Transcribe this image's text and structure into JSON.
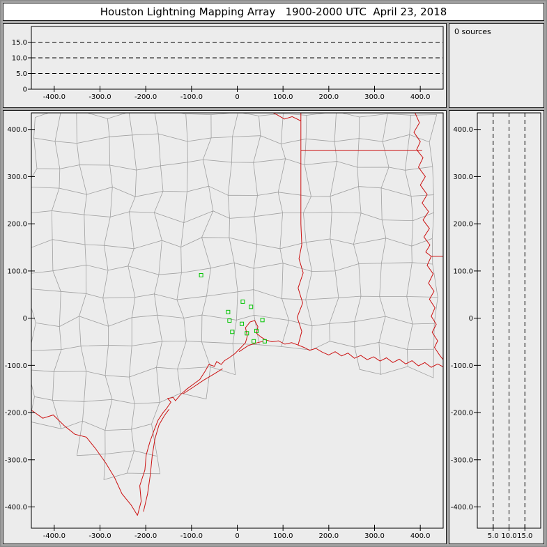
{
  "title": "Houston Lightning Mapping Array   1900-2000 UTC  April 23, 2018",
  "sources_label": "0 sources",
  "colors": {
    "window_bg": "#a8a8a8",
    "panel_bg": "#ececec",
    "panel_border": "#1a1a1a",
    "axis": "#000000",
    "county_line": "#a0a0a0",
    "state_line": "#cc1111",
    "station": "#00c400",
    "title_bg": "#ffffff"
  },
  "axes": {
    "ew": {
      "range": [
        -450,
        450
      ],
      "ticks": [
        {
          "value": -400,
          "label": "-400.0"
        },
        {
          "value": -300,
          "label": "-300.0"
        },
        {
          "value": -200,
          "label": "-200.0"
        },
        {
          "value": -100,
          "label": "-100.0"
        },
        {
          "value": 0,
          "label": "0"
        },
        {
          "value": 100,
          "label": "100.0"
        },
        {
          "value": 200,
          "label": "200.0"
        },
        {
          "value": 300,
          "label": "300.0"
        },
        {
          "value": 400,
          "label": "400.0"
        }
      ]
    },
    "ns": {
      "range": [
        -445,
        435
      ],
      "ticks": [
        {
          "value": 400,
          "label": "400.0"
        },
        {
          "value": 300,
          "label": "300.0"
        },
        {
          "value": 200,
          "label": "200.0"
        },
        {
          "value": 100,
          "label": "100.0"
        },
        {
          "value": 0,
          "label": "0"
        },
        {
          "value": -100,
          "label": "-100.0"
        },
        {
          "value": -200,
          "label": "-200.0"
        },
        {
          "value": -300,
          "label": "-300.0"
        },
        {
          "value": -400,
          "label": "-400.0"
        }
      ]
    },
    "alt": {
      "range": [
        0,
        20
      ],
      "ticks": [
        {
          "value": 5,
          "label": "5.0"
        },
        {
          "value": 10,
          "label": "10.0"
        },
        {
          "value": 15,
          "label": "15.0"
        }
      ],
      "zero": {
        "value": 0,
        "label": "0"
      },
      "reference_lines": [
        5,
        10,
        15
      ]
    }
  },
  "chart_data": {
    "panels": [
      {
        "id": "plan_view",
        "type": "scatter",
        "description": "plan view map of lightning sources over Texas / Louisiana with county and state boundaries",
        "x_range": [
          -450,
          450
        ],
        "y_range": [
          -445,
          435
        ],
        "series": [
          {
            "name": "LMA stations",
            "marker": "open-square",
            "color": "#00c400",
            "points": [
              [
                -79,
                91
              ],
              [
                12,
                35
              ],
              [
                30,
                24
              ],
              [
                -20,
                13
              ],
              [
                -17,
                -5
              ],
              [
                10,
                -12
              ],
              [
                -11,
                -29
              ],
              [
                21,
                -32
              ],
              [
                42,
                -27
              ],
              [
                55,
                -4
              ],
              [
                36,
                -49
              ],
              [
                60,
                -49
              ]
            ]
          },
          {
            "name": "lightning sources",
            "count": 0,
            "points": []
          }
        ],
        "overlays": [
          "county boundaries",
          "state boundaries",
          "coastline"
        ]
      },
      {
        "id": "altitude_vs_east_west",
        "type": "scatter",
        "x_range": [
          -450,
          450
        ],
        "y_range": [
          0,
          20
        ],
        "reference_lines_km": [
          5,
          10,
          15
        ],
        "points": []
      },
      {
        "id": "altitude_vs_north_south",
        "type": "scatter",
        "x_range": [
          0,
          20
        ],
        "y_range": [
          -445,
          435
        ],
        "reference_lines_km": [
          5,
          10,
          15
        ],
        "points": []
      },
      {
        "id": "source_count",
        "type": "text",
        "label": "0 sources"
      }
    ]
  },
  "map": {
    "red_lines": {
      "rio_grande": [
        [
          -450,
          -195
        ],
        [
          -425,
          -212
        ],
        [
          -402,
          -205
        ],
        [
          -378,
          -228
        ],
        [
          -355,
          -246
        ],
        [
          -330,
          -252
        ],
        [
          -310,
          -276
        ],
        [
          -288,
          -306
        ],
        [
          -268,
          -338
        ],
        [
          -252,
          -372
        ],
        [
          -232,
          -396
        ],
        [
          -218,
          -418
        ]
      ],
      "gulf_coast": [
        [
          -218,
          -418
        ],
        [
          -210,
          -388
        ],
        [
          -213,
          -355
        ],
        [
          -202,
          -322
        ],
        [
          -199,
          -290
        ],
        [
          -191,
          -262
        ],
        [
          -182,
          -238
        ],
        [
          -173,
          -216
        ],
        [
          -162,
          -200
        ],
        [
          -155,
          -192
        ],
        [
          -145,
          -178
        ],
        [
          -152,
          -170
        ],
        [
          -140,
          -168
        ],
        [
          -135,
          -175
        ],
        [
          -124,
          -162
        ],
        [
          -110,
          -150
        ],
        [
          -96,
          -140
        ],
        [
          -82,
          -130
        ],
        [
          -70,
          -112
        ],
        [
          -62,
          -98
        ],
        [
          -50,
          -102
        ],
        [
          -45,
          -92
        ],
        [
          -35,
          -98
        ],
        [
          -28,
          -90
        ],
        [
          -18,
          -84
        ],
        [
          -5,
          -75
        ],
        [
          8,
          -62
        ],
        [
          18,
          -52
        ],
        [
          22,
          -38
        ],
        [
          18,
          -20
        ],
        [
          28,
          -8
        ],
        [
          38,
          -5
        ],
        [
          45,
          -18
        ],
        [
          42,
          -32
        ],
        [
          52,
          -40
        ],
        [
          62,
          -46
        ],
        [
          76,
          -50
        ],
        [
          90,
          -48
        ],
        [
          104,
          -55
        ],
        [
          119,
          -52
        ],
        [
          133,
          -57
        ],
        [
          146,
          -62
        ],
        [
          158,
          -68
        ],
        [
          172,
          -64
        ],
        [
          186,
          -72
        ],
        [
          200,
          -78
        ],
        [
          214,
          -71
        ],
        [
          228,
          -80
        ],
        [
          242,
          -74
        ],
        [
          256,
          -85
        ],
        [
          270,
          -79
        ],
        [
          284,
          -88
        ],
        [
          298,
          -82
        ],
        [
          312,
          -91
        ],
        [
          326,
          -84
        ],
        [
          340,
          -94
        ],
        [
          354,
          -87
        ],
        [
          368,
          -97
        ],
        [
          382,
          -90
        ],
        [
          396,
          -101
        ],
        [
          410,
          -94
        ],
        [
          424,
          -104
        ],
        [
          438,
          -97
        ],
        [
          450,
          -103
        ]
      ],
      "padre_island": [
        [
          -205,
          -410
        ],
        [
          -196,
          -372
        ],
        [
          -190,
          -332
        ],
        [
          -186,
          -292
        ],
        [
          -180,
          -256
        ],
        [
          -171,
          -226
        ],
        [
          -159,
          -206
        ],
        [
          -149,
          -193
        ]
      ],
      "matagorda_island": [
        [
          -118,
          -160
        ],
        [
          -96,
          -146
        ],
        [
          -73,
          -131
        ],
        [
          -52,
          -119
        ],
        [
          -32,
          -107
        ]
      ],
      "galveston_island": [
        [
          4,
          -71
        ],
        [
          24,
          -58
        ],
        [
          44,
          -52
        ],
        [
          57,
          -49
        ]
      ],
      "tx_la_border": [
        [
          133,
          -57
        ],
        [
          141,
          -28
        ],
        [
          131,
          2
        ],
        [
          143,
          32
        ],
        [
          133,
          64
        ],
        [
          144,
          96
        ],
        [
          135,
          126
        ],
        [
          141,
          156
        ],
        [
          139,
          200
        ],
        [
          139,
          440
        ]
      ],
      "red_river": [
        [
          139,
          418
        ],
        [
          120,
          427
        ],
        [
          103,
          422
        ],
        [
          87,
          431
        ],
        [
          72,
          438
        ]
      ],
      "la_ar_border": [
        [
          139,
          356
        ],
        [
          404,
          356
        ]
      ],
      "mississippi_river": [
        [
          388,
          436
        ],
        [
          398,
          414
        ],
        [
          386,
          394
        ],
        [
          400,
          374
        ],
        [
          392,
          357
        ],
        [
          406,
          340
        ],
        [
          396,
          320
        ],
        [
          411,
          300
        ],
        [
          400,
          282
        ],
        [
          415,
          262
        ],
        [
          404,
          244
        ],
        [
          418,
          226
        ],
        [
          406,
          208
        ],
        [
          420,
          190
        ],
        [
          408,
          172
        ],
        [
          421,
          155
        ],
        [
          412,
          140
        ],
        [
          424,
          131
        ],
        [
          415,
          112
        ],
        [
          428,
          94
        ],
        [
          418,
          74
        ],
        [
          430,
          57
        ],
        [
          420,
          40
        ],
        [
          432,
          22
        ],
        [
          424,
          4
        ],
        [
          435,
          -13
        ],
        [
          426,
          -30
        ],
        [
          438,
          -48
        ],
        [
          431,
          -62
        ],
        [
          442,
          -78
        ],
        [
          450,
          -88
        ]
      ],
      "la_ms_border": [
        [
          424,
          131
        ],
        [
          450,
          131
        ]
      ]
    },
    "county_grid": {
      "spacing_km": 55,
      "jitter_km": 13
    }
  }
}
